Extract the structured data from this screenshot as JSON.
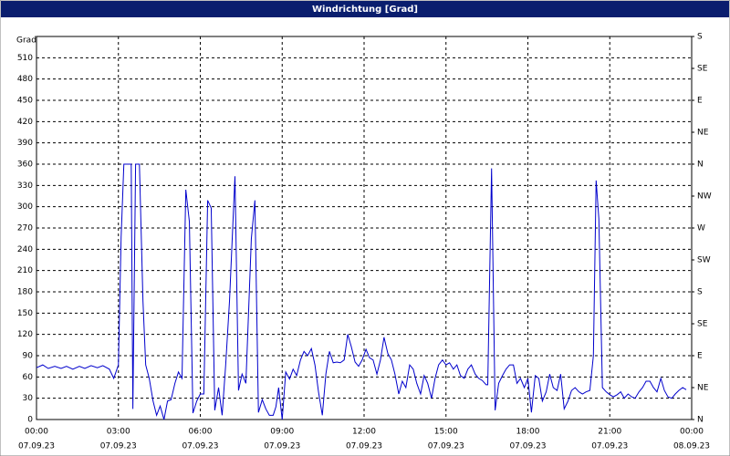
{
  "chart_data": {
    "type": "line",
    "title": "Windrichtung [Grad]",
    "y_label": "Grad",
    "x": [
      0,
      0.23,
      0.43,
      0.67,
      0.9,
      1.1,
      1.33,
      1.57,
      1.77,
      2,
      2.23,
      2.43,
      2.67,
      2.83,
      3,
      3.1,
      3.2,
      3.33,
      3.47,
      3.53,
      3.63,
      3.77,
      3.9,
      4,
      4.13,
      4.27,
      4.4,
      4.53,
      4.67,
      4.8,
      4.93,
      5.07,
      5.2,
      5.33,
      5.47,
      5.6,
      5.73,
      5.87,
      6,
      6.13,
      6.27,
      6.4,
      6.53,
      6.67,
      6.8,
      6.93,
      7.07,
      7.27,
      7.4,
      7.53,
      7.67,
      7.87,
      8,
      8.13,
      8.27,
      8.4,
      8.53,
      8.67,
      8.77,
      8.87,
      9,
      9.13,
      9.27,
      9.4,
      9.53,
      9.67,
      9.8,
      9.93,
      10.07,
      10.2,
      10.33,
      10.47,
      10.6,
      10.73,
      10.87,
      11,
      11.13,
      11.27,
      11.4,
      11.53,
      11.67,
      11.8,
      11.93,
      12.07,
      12.2,
      12.33,
      12.47,
      12.6,
      12.73,
      12.87,
      13,
      13.13,
      13.27,
      13.4,
      13.53,
      13.67,
      13.8,
      13.93,
      14.07,
      14.2,
      14.33,
      14.47,
      14.6,
      14.73,
      14.87,
      15,
      15.13,
      15.27,
      15.4,
      15.53,
      15.67,
      15.8,
      15.93,
      16.07,
      16.2,
      16.33,
      16.47,
      16.53,
      16.67,
      16.8,
      16.93,
      17.07,
      17.2,
      17.33,
      17.47,
      17.6,
      17.73,
      17.87,
      18,
      18.13,
      18.27,
      18.4,
      18.53,
      18.67,
      18.8,
      18.93,
      19.07,
      19.2,
      19.33,
      19.47,
      19.6,
      19.73,
      19.87,
      20,
      20.13,
      20.27,
      20.4,
      20.5,
      20.6,
      20.73,
      20.87,
      21,
      21.13,
      21.27,
      21.4,
      21.53,
      21.67,
      21.8,
      21.93,
      22.07,
      22.2,
      22.33,
      22.47,
      22.6,
      22.73,
      22.87,
      23,
      23.13,
      23.27,
      23.4,
      23.53,
      23.67,
      23.8
    ],
    "series": [
      {
        "name": "Windrichtung",
        "color": "#0000cc",
        "values": [
          73,
          77,
          72,
          75,
          72,
          75,
          71,
          75,
          72,
          76,
          73,
          76,
          71,
          58,
          77,
          257,
          360,
          360,
          360,
          15,
          360,
          360,
          167,
          77,
          58,
          26,
          6,
          19,
          0,
          26,
          28,
          51,
          67,
          58,
          324,
          279,
          9,
          26,
          36,
          36,
          309,
          298,
          13,
          45,
          6,
          77,
          167,
          343,
          41,
          64,
          51,
          255,
          309,
          10,
          28,
          15,
          6,
          6,
          18,
          45,
          0,
          67,
          57,
          71,
          62,
          84,
          96,
          90,
          100,
          77,
          39,
          6,
          64,
          96,
          80,
          81,
          80,
          84,
          120,
          103,
          81,
          75,
          84,
          99,
          87,
          84,
          64,
          84,
          116,
          93,
          84,
          64,
          36,
          54,
          45,
          77,
          71,
          51,
          36,
          62,
          51,
          30,
          58,
          77,
          84,
          77,
          80,
          71,
          77,
          62,
          58,
          71,
          77,
          64,
          58,
          55,
          49,
          49,
          354,
          13,
          51,
          62,
          71,
          77,
          77,
          51,
          58,
          45,
          58,
          10,
          62,
          58,
          26,
          39,
          64,
          45,
          41,
          64,
          15,
          26,
          41,
          45,
          39,
          36,
          39,
          41,
          90,
          337,
          283,
          45,
          39,
          35,
          32,
          35,
          39,
          30,
          36,
          32,
          30,
          39,
          45,
          54,
          54,
          45,
          39,
          58,
          41,
          32,
          30,
          36,
          41,
          45,
          42
        ]
      }
    ],
    "xlim": [
      0,
      24
    ],
    "xticks": [
      {
        "value": 0,
        "label": "00:00"
      },
      {
        "value": 3,
        "label": "03:00"
      },
      {
        "value": 6,
        "label": "06:00"
      },
      {
        "value": 9,
        "label": "09:00"
      },
      {
        "value": 12,
        "label": "12:00"
      },
      {
        "value": 15,
        "label": "15:00"
      },
      {
        "value": 18,
        "label": "18:00"
      },
      {
        "value": 21,
        "label": "21:00"
      },
      {
        "value": 24,
        "label": "00:00"
      }
    ],
    "xtick_dates": [
      "07.09.23",
      "07.09.23",
      "07.09.23",
      "07.09.23",
      "07.09.23",
      "07.09.23",
      "07.09.23",
      "07.09.23",
      "08.09.23"
    ],
    "ylim": [
      0,
      540
    ],
    "yticks": [
      0,
      30,
      60,
      90,
      120,
      150,
      180,
      210,
      240,
      270,
      300,
      330,
      360,
      390,
      420,
      450,
      480,
      510
    ],
    "y2lim": [
      0,
      540
    ],
    "y2ticks": [
      {
        "value": 0,
        "label": "N"
      },
      {
        "value": 45,
        "label": "NE"
      },
      {
        "value": 90,
        "label": "E"
      },
      {
        "value": 135,
        "label": "SE"
      },
      {
        "value": 180,
        "label": "S"
      },
      {
        "value": 225,
        "label": "SW"
      },
      {
        "value": 270,
        "label": "W"
      },
      {
        "value": 315,
        "label": "NW"
      },
      {
        "value": 360,
        "label": "N"
      },
      {
        "value": 405,
        "label": "NE"
      },
      {
        "value": 450,
        "label": "E"
      },
      {
        "value": 495,
        "label": "SE"
      },
      {
        "value": 540,
        "label": "S"
      }
    ],
    "grid": true
  }
}
